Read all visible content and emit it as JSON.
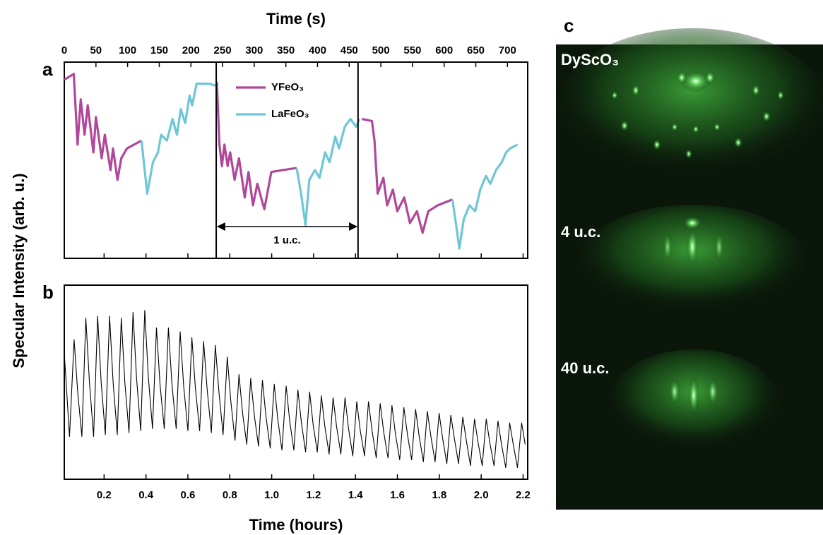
{
  "chart_data": [
    {
      "type": "line",
      "panel_label": "a",
      "xlabel": "Time (s)",
      "ylabel": "Specular Intensity (arb. u.)",
      "xaxis_position": "top",
      "xlim": [
        0,
        732
      ],
      "ylim": [
        0,
        1
      ],
      "xticks": [
        0,
        50,
        100,
        150,
        200,
        250,
        300,
        350,
        400,
        450,
        500,
        550,
        600,
        650,
        700
      ],
      "legend": "upper center",
      "x": [
        0,
        15,
        21,
        26,
        32,
        37,
        46,
        50,
        59,
        64,
        73,
        77,
        84,
        90,
        99,
        122,
        131,
        140,
        148,
        153,
        162,
        171,
        178,
        184,
        191,
        198,
        202,
        209,
        229,
        239,
        241,
        245,
        249,
        253,
        258,
        262,
        269,
        276,
        285,
        291,
        298,
        305,
        316,
        327,
        345,
        367,
        374,
        381,
        387,
        396,
        403,
        412,
        419,
        428,
        434,
        443,
        452,
        461,
        466,
        470,
        486,
        490,
        495,
        504,
        510,
        519,
        526,
        537,
        546,
        557,
        566,
        575,
        590,
        613,
        619,
        624,
        631,
        640,
        649,
        657,
        666,
        673,
        682,
        691,
        698,
        704,
        716
      ],
      "series": [
        {
          "name": "YFeO₃",
          "color": "#b0479a",
          "values": [
            0.91,
            0.94,
            0.58,
            0.81,
            0.63,
            0.78,
            0.54,
            0.72,
            0.51,
            0.63,
            0.45,
            0.56,
            0.4,
            0.51,
            0.56,
            0.6,
            null,
            null,
            null,
            null,
            null,
            null,
            null,
            null,
            null,
            null,
            null,
            null,
            null,
            null,
            0.9,
            0.58,
            0.47,
            0.58,
            0.47,
            0.54,
            0.4,
            0.51,
            0.31,
            0.44,
            0.27,
            0.38,
            0.25,
            0.44,
            0.45,
            0.46,
            null,
            null,
            null,
            null,
            null,
            null,
            null,
            null,
            null,
            null,
            null,
            null,
            null,
            0.71,
            0.7,
            0.6,
            0.33,
            0.41,
            0.27,
            0.35,
            0.24,
            0.31,
            0.18,
            0.24,
            0.13,
            0.24,
            0.27,
            0.3,
            null,
            null,
            null,
            null,
            null,
            null,
            null,
            null,
            null,
            null,
            null,
            null,
            null
          ]
        },
        {
          "name": "LaFeO₃",
          "color": "#6ec6d6",
          "values": [
            null,
            null,
            null,
            null,
            null,
            null,
            null,
            null,
            null,
            null,
            null,
            null,
            null,
            null,
            null,
            0.6,
            0.33,
            0.49,
            0.54,
            0.63,
            0.6,
            0.71,
            0.63,
            0.76,
            0.69,
            0.83,
            0.78,
            0.89,
            0.89,
            0.88,
            null,
            null,
            null,
            null,
            null,
            null,
            null,
            null,
            null,
            null,
            null,
            null,
            null,
            null,
            null,
            0.46,
            0.33,
            0.17,
            0.4,
            0.45,
            0.41,
            0.54,
            0.49,
            0.62,
            0.56,
            0.67,
            0.71,
            0.67,
            0.71,
            null,
            null,
            null,
            null,
            null,
            null,
            null,
            null,
            null,
            null,
            null,
            null,
            null,
            null,
            0.3,
            0.17,
            0.05,
            0.2,
            0.27,
            0.24,
            0.35,
            0.42,
            0.38,
            0.45,
            0.49,
            0.54,
            0.56,
            0.58
          ]
        }
      ],
      "vlines": [
        240,
        464
      ],
      "annotation": "1 u.c."
    },
    {
      "type": "line",
      "panel_label": "b",
      "xlabel": "Time (hours)",
      "xaxis_position": "bottom",
      "xlim": [
        0.01,
        2.222
      ],
      "ylim": [
        0,
        1
      ],
      "xticks": [
        0.2,
        0.4,
        0.6,
        0.8,
        {
          "value": 1,
          "label": "1.0"
        },
        1.2,
        1.4,
        1.6,
        1.8,
        {
          "value": 2,
          "label": "2.0"
        },
        2.2
      ],
      "color": "#000000",
      "x": [
        0.01,
        0.035,
        0.057,
        0.074,
        0.094,
        0.113,
        0.13,
        0.15,
        0.169,
        0.186,
        0.206,
        0.226,
        0.243,
        0.263,
        0.282,
        0.299,
        0.319,
        0.338,
        0.355,
        0.375,
        0.394,
        0.411,
        0.431,
        0.45,
        0.467,
        0.487,
        0.507,
        0.524,
        0.544,
        0.563,
        0.58,
        0.6,
        0.619,
        0.636,
        0.656,
        0.675,
        0.692,
        0.712,
        0.731,
        0.748,
        0.768,
        0.788,
        0.805,
        0.825,
        0.844,
        0.861,
        0.881,
        0.9,
        0.917,
        0.937,
        0.956,
        0.973,
        0.993,
        1.012,
        1.029,
        1.049,
        1.069,
        1.086,
        1.106,
        1.125,
        1.142,
        1.162,
        1.181,
        1.198,
        1.218,
        1.237,
        1.254,
        1.274,
        1.293,
        1.31,
        1.33,
        1.35,
        1.367,
        1.387,
        1.406,
        1.423,
        1.443,
        1.462,
        1.479,
        1.499,
        1.518,
        1.535,
        1.555,
        1.574,
        1.591,
        1.611,
        1.631,
        1.648,
        1.668,
        1.687,
        1.704,
        1.724,
        1.743,
        1.76,
        1.78,
        1.799,
        1.816,
        1.836,
        1.855,
        1.872,
        1.892,
        1.912,
        1.929,
        1.949,
        1.968,
        1.985,
        2.005,
        2.024,
        2.041,
        2.061,
        2.08,
        2.097,
        2.117,
        2.136,
        2.153,
        2.173,
        2.193,
        2.21
      ],
      "values": [
        0.65,
        0.22,
        0.72,
        0.45,
        0.22,
        0.83,
        0.5,
        0.22,
        0.84,
        0.5,
        0.23,
        0.84,
        0.5,
        0.23,
        0.83,
        0.5,
        0.24,
        0.86,
        0.52,
        0.25,
        0.87,
        0.53,
        0.26,
        0.78,
        0.49,
        0.26,
        0.78,
        0.49,
        0.26,
        0.76,
        0.48,
        0.25,
        0.73,
        0.47,
        0.25,
        0.71,
        0.46,
        0.24,
        0.69,
        0.45,
        0.23,
        0.63,
        0.4,
        0.2,
        0.54,
        0.34,
        0.18,
        0.52,
        0.33,
        0.17,
        0.51,
        0.32,
        0.16,
        0.49,
        0.31,
        0.15,
        0.48,
        0.3,
        0.15,
        0.46,
        0.29,
        0.14,
        0.45,
        0.28,
        0.14,
        0.43,
        0.27,
        0.13,
        0.42,
        0.27,
        0.13,
        0.42,
        0.26,
        0.12,
        0.4,
        0.25,
        0.12,
        0.4,
        0.25,
        0.11,
        0.39,
        0.24,
        0.11,
        0.38,
        0.23,
        0.1,
        0.37,
        0.23,
        0.1,
        0.36,
        0.22,
        0.09,
        0.35,
        0.22,
        0.09,
        0.34,
        0.21,
        0.08,
        0.33,
        0.21,
        0.08,
        0.32,
        0.2,
        0.07,
        0.31,
        0.19,
        0.07,
        0.31,
        0.19,
        0.07,
        0.3,
        0.18,
        0.06,
        0.29,
        0.18,
        0.06,
        0.29,
        0.18
      ]
    }
  ],
  "rheed": {
    "panel_label": "c",
    "labels": [
      "DyScO₃",
      "4 u.c.",
      "40 u.c."
    ]
  }
}
